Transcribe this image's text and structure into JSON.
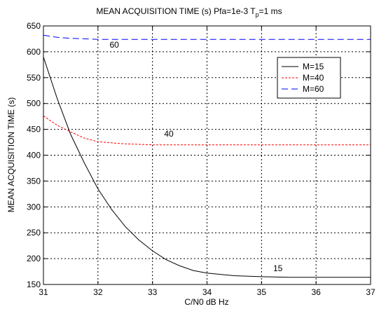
{
  "chart_data": {
    "type": "line",
    "title": "MEAN ACQUISITION TIME (s)    Pfa=1e-3   T",
    "title_sub": "p",
    "title_end": "=1 ms",
    "xlabel": "C/N0 dB Hz",
    "ylabel": "MEAN ACQUISITION TIME (s)",
    "xlim": [
      31,
      37
    ],
    "ylim": [
      150,
      650
    ],
    "xticks": [
      31,
      32,
      33,
      34,
      35,
      36,
      37
    ],
    "yticks": [
      150,
      200,
      250,
      300,
      350,
      400,
      450,
      500,
      550,
      600,
      650
    ],
    "grid": true,
    "legend_position": "top-right",
    "series": [
      {
        "name": "M=15",
        "color": "#000000",
        "dash": "solid",
        "x": [
          31,
          31.25,
          31.5,
          31.75,
          32,
          32.25,
          32.5,
          32.75,
          33,
          33.25,
          33.5,
          33.75,
          34,
          34.5,
          35,
          35.5,
          36,
          36.5,
          37
        ],
        "y": [
          590,
          510,
          440,
          385,
          335,
          295,
          262,
          236,
          215,
          198,
          186,
          177,
          172,
          167,
          165,
          164,
          164,
          164,
          164
        ]
      },
      {
        "name": "M=40",
        "color": "#ff0000",
        "dash": "3,2",
        "x": [
          31,
          31.25,
          31.5,
          31.75,
          32,
          32.5,
          33,
          33.5,
          34,
          35,
          36,
          37
        ],
        "y": [
          476,
          458,
          445,
          433,
          426,
          422,
          420,
          420,
          420,
          420,
          420,
          420
        ]
      },
      {
        "name": "M=60",
        "color": "#0000ff",
        "dash": "9,5",
        "x": [
          31,
          31.25,
          31.5,
          31.75,
          32,
          33,
          34,
          35,
          36,
          37
        ],
        "y": [
          632,
          628,
          626,
          625,
          624,
          624,
          624,
          624,
          624,
          624
        ]
      }
    ],
    "annotations": [
      {
        "text": "60",
        "x": 32.3,
        "y": 608
      },
      {
        "text": "40",
        "x": 33.3,
        "y": 436
      },
      {
        "text": "15",
        "x": 35.3,
        "y": 176
      }
    ]
  }
}
